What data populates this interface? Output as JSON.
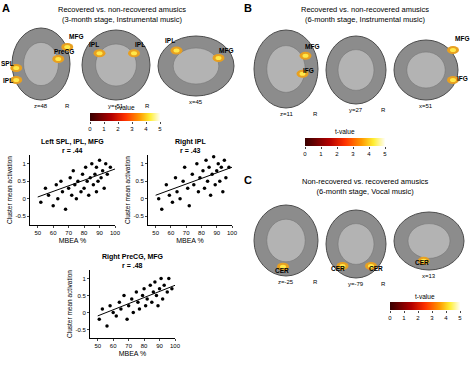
{
  "figure": {
    "panels": [
      {
        "letter": "A",
        "title": [
          "Recovered vs. non-recovered amusics",
          "(3-month stage, Instrumental music)"
        ],
        "images": [
          {
            "coord": "z=48",
            "side": "R",
            "labels": [
              "MFG",
              "PreCG",
              "SPL",
              "IPL"
            ]
          },
          {
            "coord": "y=-51",
            "side": "R",
            "labels": [
              "IPL",
              "IPL"
            ]
          },
          {
            "coord": "x=45",
            "labels": [
              "IPL",
              "MFG"
            ]
          }
        ],
        "colorbar": {
          "label": "t-value",
          "range": [
            0,
            5
          ],
          "ticks": [
            0,
            1,
            2,
            3,
            4,
            5
          ]
        }
      },
      {
        "letter": "B",
        "title": [
          "Recovered vs. non-recovered amusics",
          "(6-month stage, Instrumental music)"
        ],
        "images": [
          {
            "coord": "z=11",
            "side": "R",
            "labels": [
              "MFG",
              "IFG"
            ]
          },
          {
            "coord": "y=27",
            "side": "R",
            "labels": []
          },
          {
            "coord": "x=51",
            "labels": [
              "MFG",
              "IFG"
            ]
          }
        ],
        "colorbar": {
          "label": "t-value",
          "range": [
            0,
            5
          ],
          "ticks": [
            0,
            1,
            2,
            3,
            4,
            5
          ]
        }
      },
      {
        "letter": "C",
        "title": [
          "Non-recovered vs. recovered amusics",
          "(6-month stage, Vocal music)"
        ],
        "images": [
          {
            "coord": "z=-25",
            "side": "R",
            "labels": [
              "CER"
            ]
          },
          {
            "coord": "y=-79",
            "side": "R",
            "labels": [
              "CER",
              "CER"
            ]
          },
          {
            "coord": "x=13",
            "labels": [
              "CER"
            ]
          }
        ],
        "colorbar": {
          "label": "t-value",
          "range": [
            0,
            5
          ],
          "ticks": [
            0,
            1,
            2,
            3,
            4,
            5
          ]
        }
      }
    ]
  },
  "chart_data": [
    {
      "type": "scatter",
      "title": "Left SPL, IPL, MFG",
      "subtitle": "r = .44",
      "x_label": "MBEA %",
      "y_label": "Cluster mean activation",
      "xlim": [
        45,
        100
      ],
      "xticks": [
        50,
        60,
        70,
        80,
        90,
        100
      ],
      "ylim": [
        -0.75,
        1.25
      ],
      "yticks": [
        -0.5,
        0,
        0.5,
        1
      ],
      "grid": false,
      "color": "#000000",
      "marker": "circle",
      "x": [
        52,
        55,
        57,
        60,
        62,
        63,
        65,
        66,
        68,
        70,
        71,
        72,
        73,
        74,
        75,
        76,
        78,
        79,
        80,
        81,
        82,
        83,
        84,
        85,
        86,
        87,
        88,
        88,
        89,
        90,
        91,
        92,
        93,
        94,
        95,
        97
      ],
      "values": [
        -0.1,
        0.3,
        0.1,
        -0.2,
        0.4,
        0.0,
        0.5,
        0.2,
        -0.3,
        0.3,
        0.6,
        0.1,
        0.8,
        0.4,
        0.0,
        0.5,
        0.2,
        0.7,
        0.3,
        0.9,
        0.5,
        0.1,
        0.6,
        1.0,
        0.4,
        0.7,
        0.2,
        0.9,
        0.5,
        1.1,
        0.6,
        0.8,
        0.3,
        1.0,
        0.7,
        0.9
      ],
      "trend": {
        "x": [
          50,
          100
        ],
        "values": [
          0.05,
          0.85
        ]
      }
    },
    {
      "type": "scatter",
      "title": "Right IPL",
      "subtitle": "r = .43",
      "x_label": "MBEA %",
      "y_label": "Cluster mean activation",
      "xlim": [
        45,
        100
      ],
      "xticks": [
        50,
        60,
        70,
        80,
        90,
        100
      ],
      "ylim": [
        -0.75,
        1.25
      ],
      "yticks": [
        -0.5,
        0,
        0.5,
        1
      ],
      "grid": false,
      "color": "#000000",
      "marker": "circle",
      "x": [
        52,
        54,
        57,
        59,
        61,
        63,
        64,
        66,
        68,
        69,
        71,
        72,
        74,
        75,
        77,
        78,
        79,
        81,
        82,
        83,
        84,
        85,
        86,
        87,
        88,
        89,
        90,
        91,
        92,
        93,
        94,
        95,
        96,
        98
      ],
      "values": [
        0.0,
        -0.3,
        0.4,
        0.1,
        -0.1,
        0.6,
        0.2,
        0.0,
        0.5,
        0.9,
        0.3,
        -0.2,
        0.7,
        0.4,
        1.0,
        0.2,
        0.6,
        0.8,
        0.3,
        1.1,
        0.5,
        0.9,
        0.1,
        0.7,
        1.2,
        0.4,
        0.8,
        1.0,
        0.5,
        0.9,
        0.2,
        1.1,
        0.6,
        0.9
      ],
      "trend": {
        "x": [
          50,
          100
        ],
        "values": [
          0.1,
          0.9
        ]
      }
    },
    {
      "type": "scatter",
      "title": "Right PreCG, MFG",
      "subtitle": "r = .48",
      "x_label": "MBEA %",
      "y_label": "Cluster mean activation",
      "xlim": [
        45,
        100
      ],
      "xticks": [
        50,
        60,
        70,
        80,
        90,
        100
      ],
      "ylim": [
        -0.75,
        1.25
      ],
      "yticks": [
        -0.5,
        0,
        0.5,
        1
      ],
      "grid": false,
      "color": "#000000",
      "marker": "circle",
      "x": [
        51,
        53,
        56,
        58,
        60,
        62,
        64,
        65,
        67,
        69,
        70,
        72,
        73,
        75,
        76,
        77,
        79,
        80,
        81,
        82,
        84,
        85,
        86,
        87,
        88,
        89,
        90,
        91,
        92,
        93,
        95,
        96,
        98
      ],
      "values": [
        -0.2,
        0.1,
        -0.4,
        0.2,
        0.0,
        -0.1,
        0.3,
        0.1,
        0.5,
        -0.2,
        0.2,
        0.4,
        0.0,
        0.6,
        0.3,
        0.1,
        0.5,
        0.7,
        0.2,
        0.4,
        0.8,
        0.3,
        0.6,
        0.9,
        0.5,
        0.2,
        0.7,
        1.0,
        0.4,
        0.8,
        0.6,
        1.0,
        0.7
      ],
      "trend": {
        "x": [
          50,
          100
        ],
        "values": [
          -0.1,
          0.8
        ]
      }
    }
  ]
}
